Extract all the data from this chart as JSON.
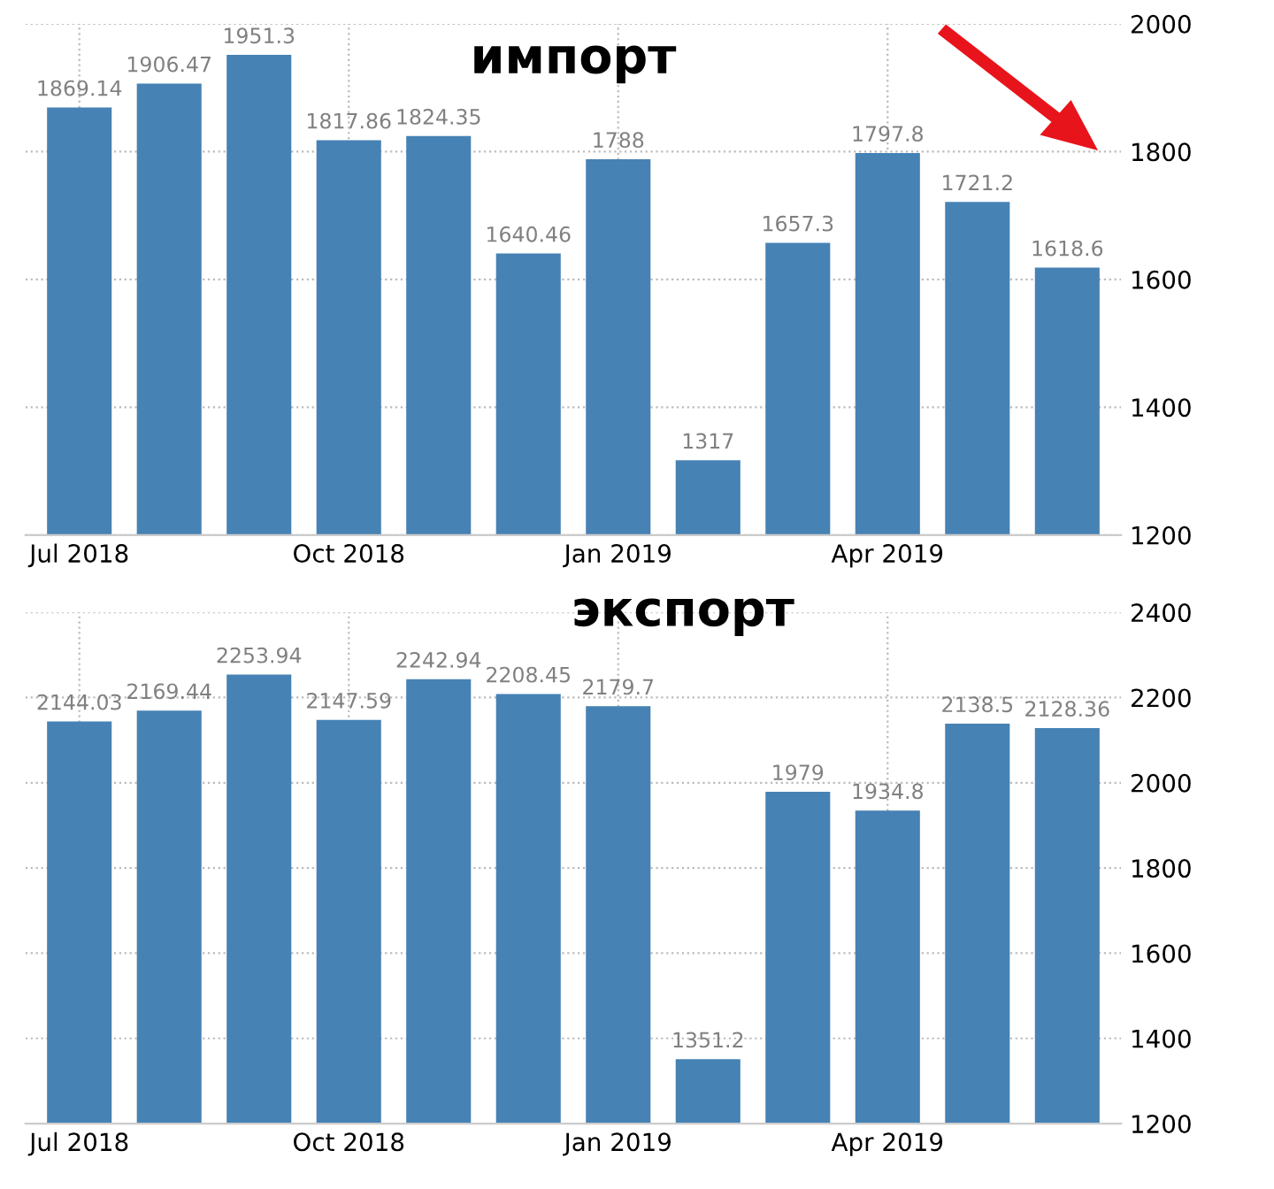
{
  "chart_data": [
    {
      "type": "bar",
      "title": "импорт",
      "categories": [
        "Jul 2018",
        null,
        null,
        "Oct 2018",
        null,
        null,
        "Jan 2019",
        null,
        null,
        "Apr 2019",
        null,
        null
      ],
      "values": [
        1869.14,
        1906.47,
        1951.3,
        1817.86,
        1824.35,
        1640.46,
        1788,
        1317,
        1657.3,
        1797.8,
        1721.2,
        1618.6
      ],
      "color": "#4682b4",
      "ylim": [
        1200,
        2000
      ],
      "yticks": [
        1200,
        1400,
        1600,
        1800,
        2000
      ],
      "grid": true,
      "data_labels": true
    },
    {
      "type": "bar",
      "title": "экспорт",
      "categories": [
        "Jul 2018",
        null,
        null,
        "Oct 2018",
        null,
        null,
        "Jan 2019",
        null,
        null,
        "Apr 2019",
        null,
        null
      ],
      "values": [
        2144.03,
        2169.44,
        2253.94,
        2147.59,
        2242.94,
        2208.45,
        2179.7,
        1351.2,
        1979,
        1934.8,
        2138.5,
        2128.36
      ],
      "color": "#4682b4",
      "ylim": [
        1200,
        2400
      ],
      "yticks": [
        1200,
        1400,
        1600,
        1800,
        2000,
        2200,
        2400
      ],
      "grid": true,
      "data_labels": true
    }
  ]
}
